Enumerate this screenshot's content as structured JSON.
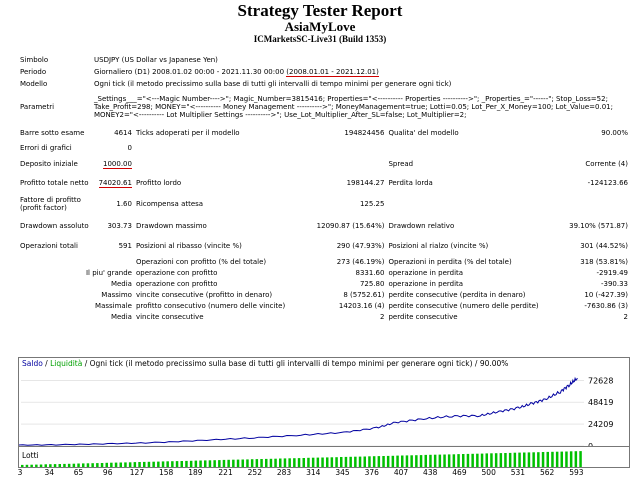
{
  "header": {
    "title": "Strategy Tester Report",
    "name": "AsiaMyLove",
    "server": "ICMarketsSC-Live31 (Build 1353)"
  },
  "report": {
    "simbolo_label": "Simbolo",
    "simbolo": "USDJPY (US Dollar vs Japanese Yen)",
    "periodo_label": "Periodo",
    "periodo_prefix": "Giornaliero (D1) 2008.01.02 00:00 - 2021.11.30 00:00",
    "periodo_range": "(2008.01.01 - 2021.12.01)",
    "modello_label": "Modello",
    "modello": "Ogni tick (il metodo precissimo sulla base di tutti gli intervalli di tempo minimi per generare ogni tick)",
    "parametri_label": "Parametri",
    "parametri": "_Settings___=\"<---Magic Number---->\"; Magic_Number=3815416; Properties=\"<---------- Properties ---------->\"; _Properties_=\"------\"; Stop_Loss=52; Take_Profit=298; MONEY=\"<---------- Money Management ---------->\"; MoneyManagement=true; Lotti=0.05; Lot_Per_X_Money=100; Lot_Value=0.01; MONEY2=\"<---------- Lot Multiplier Settings ---------->\"; Use_Lot_Multiplier_After_SL=false; Lot_Multiplier=2;",
    "barre_label": "Barre sotto esame",
    "barre": "4614",
    "ticks_label": "Ticks adoperati per il modello",
    "ticks": "194824456",
    "qualita_label": "Qualita' del modello",
    "qualita": "90.00%",
    "errori_label": "Errori di grafici",
    "errori": "0",
    "deposito_label": "Deposito iniziale",
    "deposito": "1000.00",
    "spread_label": "Spread",
    "spread": "Corrente (4)",
    "profitto_netto_label": "Profitto totale netto",
    "profitto_netto": "74020.61",
    "profitto_lordo_label": "Profitto lordo",
    "profitto_lordo": "198144.27",
    "perdita_lorda_label": "Perdita lorda",
    "perdita_lorda": "-124123.66",
    "fattore_label": "Fattore di profitto (profit factor)",
    "fattore": "1.60",
    "ricompensa_label": "Ricompensa attesa",
    "ricompensa": "125.25",
    "dd_ass_label": "Drawdown assoluto",
    "dd_ass": "303.73",
    "dd_max_label": "Drawdown massimo",
    "dd_max": "12090.87 (15.64%)",
    "dd_rel_label": "Drawdown relativo",
    "dd_rel": "39.10% (571.87)",
    "operazioni_label": "Operazioni totali",
    "operazioni": "591",
    "ribasso_label": "Posizioni al ribasso (vincite %)",
    "ribasso": "290 (47.93%)",
    "rialzo_label": "Posizioni al rialzo (vincite %)",
    "rialzo": "301 (44.52%)",
    "op_profitto_label": "Operazioni con profitto (% del totale)",
    "op_profitto": "273 (46.19%)",
    "op_perdita_label": "Operazioni in perdita (% del totale)",
    "op_perdita": "318 (53.81%)",
    "grande_label": "Il piu' grande",
    "grande_prof_label": "operazione con profitto",
    "grande_prof": "8331.60",
    "grande_perd_label": "operazione in perdita",
    "grande_perd": "-2919.49",
    "media_label": "Media",
    "media_prof_label": "operazione con profitto",
    "media_prof": "725.80",
    "media_perd_label": "operazione in perdita",
    "media_perd": "-390.33",
    "massimo_label": "Massimo",
    "max_vinc_label": "vincite consecutive (profitto in denaro)",
    "max_vinc": "8 (5752.61)",
    "max_perd_label": "perdite consecutive (perdita in denaro)",
    "max_perd": "10 (-427.39)",
    "massimale_label": "Massimale",
    "mass_vinc_label": "profitto consecutivo (numero delle vincite)",
    "mass_vinc": "14203.16 (4)",
    "mass_perd_label": "perdite consecutive (numero delle perdite)",
    "mass_perd": "-7630.86 (3)",
    "media2_label": "Media",
    "media_vinc_label": "vincite consecutive",
    "media_vinc": "2",
    "media_perdc_label": "perdite consecutive",
    "media_perdc": "2"
  },
  "chart": {
    "saldo": "Saldo",
    "liquidita": "Liquidità",
    "desc": "Ogni tick (il metodo precissimo sulla base di tutti gli intervalli di tempo minimi per generare ogni tick) / 90.00%",
    "lotti": "Lotti",
    "balance_color": "#0000a0",
    "lots_color": "#00c000"
  },
  "chart_data": {
    "type": "line",
    "series": [
      {
        "name": "Saldo",
        "color": "#0000a0"
      }
    ],
    "x": [
      0,
      50,
      100,
      150,
      200,
      250,
      300,
      345,
      380,
      400,
      430,
      460,
      490,
      510,
      530,
      545,
      560,
      575,
      585,
      593
    ],
    "y": [
      1000,
      1500,
      2500,
      4000,
      6500,
      9000,
      12000,
      15000,
      20000,
      26000,
      30000,
      33000,
      33500,
      38000,
      42000,
      47000,
      52000,
      60000,
      68000,
      75000
    ],
    "ylim": [
      0,
      84000
    ],
    "xlim": [
      3,
      600
    ],
    "y_ticks": [
      "72628",
      "48419",
      "24209",
      "0"
    ],
    "y_tick_values": [
      72628,
      48419,
      24209,
      0
    ],
    "x_ticks": [
      "3",
      "34",
      "65",
      "96",
      "127",
      "158",
      "189",
      "221",
      "252",
      "283",
      "314",
      "345",
      "376",
      "407",
      "438",
      "469",
      "500",
      "531",
      "562",
      "593"
    ],
    "x_tick_values": [
      3,
      34,
      65,
      96,
      127,
      158,
      189,
      221,
      252,
      283,
      314,
      345,
      376,
      407,
      438,
      469,
      500,
      531,
      562,
      593
    ]
  }
}
